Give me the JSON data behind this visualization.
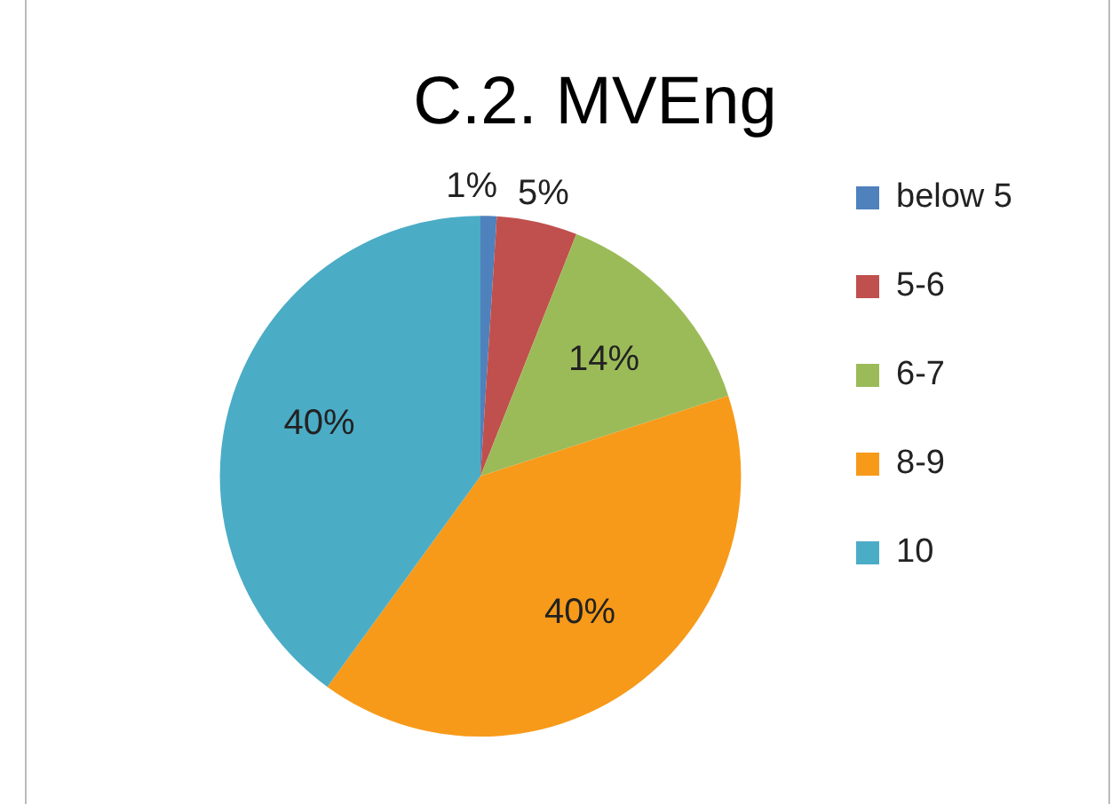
{
  "chart_data": {
    "type": "pie",
    "title": "C.2. MVEng",
    "categories": [
      "below 5",
      "5-6",
      "6-7",
      "8-9",
      "10"
    ],
    "values": [
      1,
      5,
      14,
      40,
      40
    ],
    "colors": [
      "#4f81bd",
      "#c0504d",
      "#9bbb59",
      "#f79a1a",
      "#4bacc6"
    ],
    "value_labels": [
      "1%",
      "5%",
      "14%",
      "40%",
      "40%"
    ],
    "legend": "right"
  }
}
